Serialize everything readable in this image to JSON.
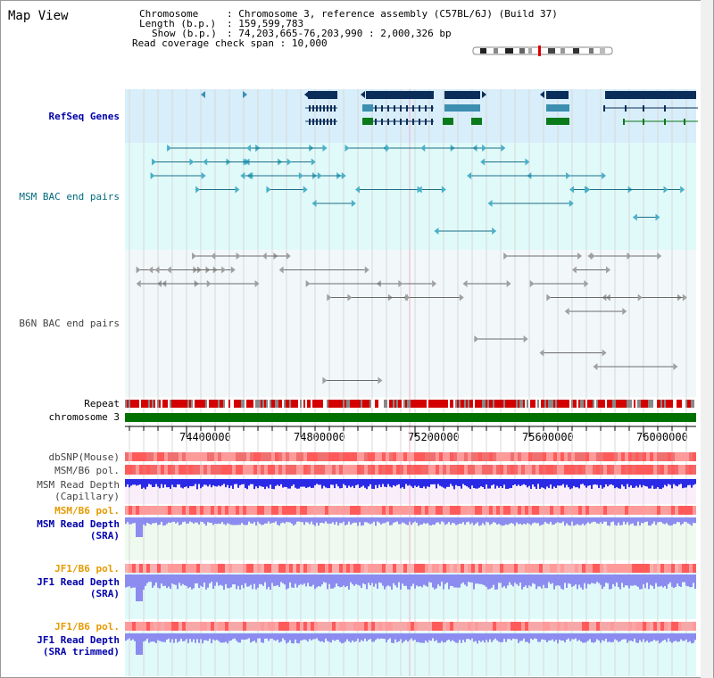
{
  "header": {
    "title": "Map View",
    "chromosome_label": "Chromosome",
    "chromosome_value": "Chromosome 3, reference assembly (C57BL/6J) (Build 37)",
    "length_label": "Length (b.p.)",
    "length_value": "159,599,783",
    "show_label": "Show (b.p.)",
    "show_value": "74,203,665-76,203,990 : 2,000,326 bp",
    "coverage_label": "Read coverage check span",
    "coverage_value": "10,000"
  },
  "tracks": {
    "refseq": "RefSeq Genes",
    "msm_bac": "MSM BAC end pairs",
    "b6n_bac": "B6N BAC end pairs",
    "repeat": "Repeat",
    "chromosome": "chromosome 3",
    "dbsnp": "dbSNP(Mouse)",
    "msm_b6_pol_1": "MSM/B6 pol.",
    "msm_depth_cap": "MSM Read Depth\n(Capillary)",
    "msm_b6_pol_2": "MSM/B6 pol.",
    "msm_depth_sra": "MSM Read Depth\n(SRA)",
    "jf1_b6_pol_1": "JF1/B6 pol.",
    "jf1_depth_sra": "JF1 Read Depth\n(SRA)",
    "jf1_b6_pol_2": "JF1/B6 pol.",
    "jf1_depth_trim": "JF1 Read Depth\n(SRA trimmed)"
  },
  "axis": {
    "ticks": [
      "74400000",
      "74800000",
      "75200000",
      "75600000",
      "76000000"
    ]
  },
  "colors": {
    "refseq_bg": "#d8eefa",
    "bac_bg": "#e0fafa",
    "gene_dark": "#0b2d5a",
    "gene_teal": "#3c8fb0",
    "gene_green": "#0a7a1a",
    "chrom_green": "#007000",
    "repeat_red": "#d40000",
    "depth_blue": "#2a2ae6",
    "depth_light": "#8c8cf0"
  }
}
